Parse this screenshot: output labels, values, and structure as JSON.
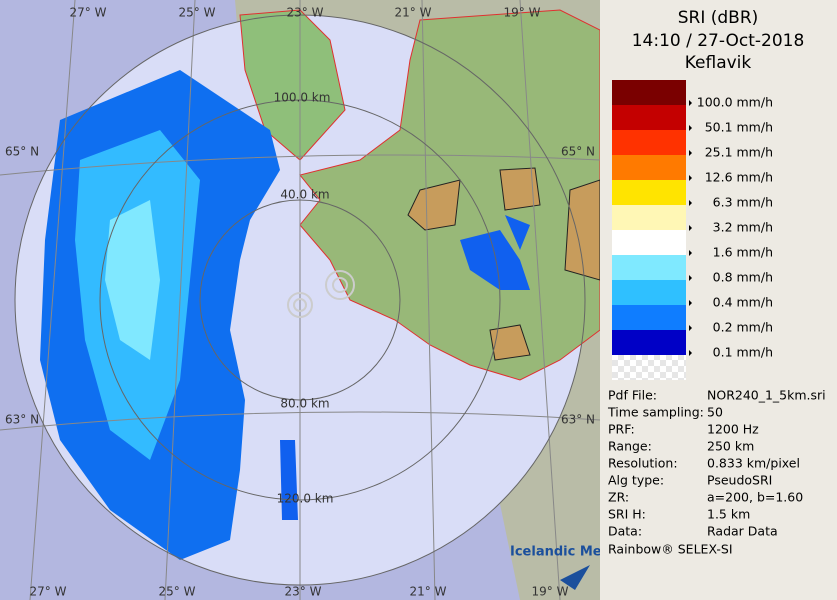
{
  "map": {
    "longitude_labels_top": [
      "27° W",
      "25° W",
      "23° W",
      "21° W",
      "19° W"
    ],
    "longitude_labels_bottom": [
      "27° W",
      "25° W",
      "23° W",
      "21° W",
      "19° W"
    ],
    "latitude_labels_left": [
      "65° N",
      "63° N"
    ],
    "latitude_labels_right": [
      "65° N",
      "63° N"
    ],
    "range_labels": [
      "100.0 km",
      "40.0 km",
      "80.0 km",
      "120.0 km"
    ],
    "logo": "Icelandic Met Office"
  },
  "legend": {
    "title": "SRI (dBR)",
    "time": "14:10 / 27-Oct-2018",
    "site": "Keflavik",
    "colors": [
      "#7a0000",
      "#c40000",
      "#ff3200",
      "#ff7a00",
      "#ffe400",
      "#fff7b5",
      "#ffffff",
      "#7fe9ff",
      "#2fc0ff",
      "#0f7dff",
      "#0000c6",
      "#eeeeee"
    ],
    "labels": [
      "100.0 mm/h",
      "50.1 mm/h",
      "25.1 mm/h",
      "12.6 mm/h",
      "6.3 mm/h",
      "3.2 mm/h",
      "1.6 mm/h",
      "0.8 mm/h",
      "0.4 mm/h",
      "0.2 mm/h",
      "0.1 mm/h"
    ]
  },
  "info": {
    "rows": [
      [
        "Pdf File:",
        "NOR240_1_5km.sri"
      ],
      [
        "Time sampling:",
        "50"
      ],
      [
        "PRF:",
        "1200 Hz"
      ],
      [
        "Range:",
        "250 km"
      ],
      [
        "Resolution:",
        "0.833 km/pixel"
      ],
      [
        "Alg type:",
        "PseudoSRI"
      ],
      [
        "ZR:",
        "a=200, b=1.60"
      ],
      [
        "SRI H:",
        "1.5 km"
      ],
      [
        "Data:",
        "Radar Data"
      ]
    ],
    "footer": "Rainbow® SELEX-SI"
  }
}
